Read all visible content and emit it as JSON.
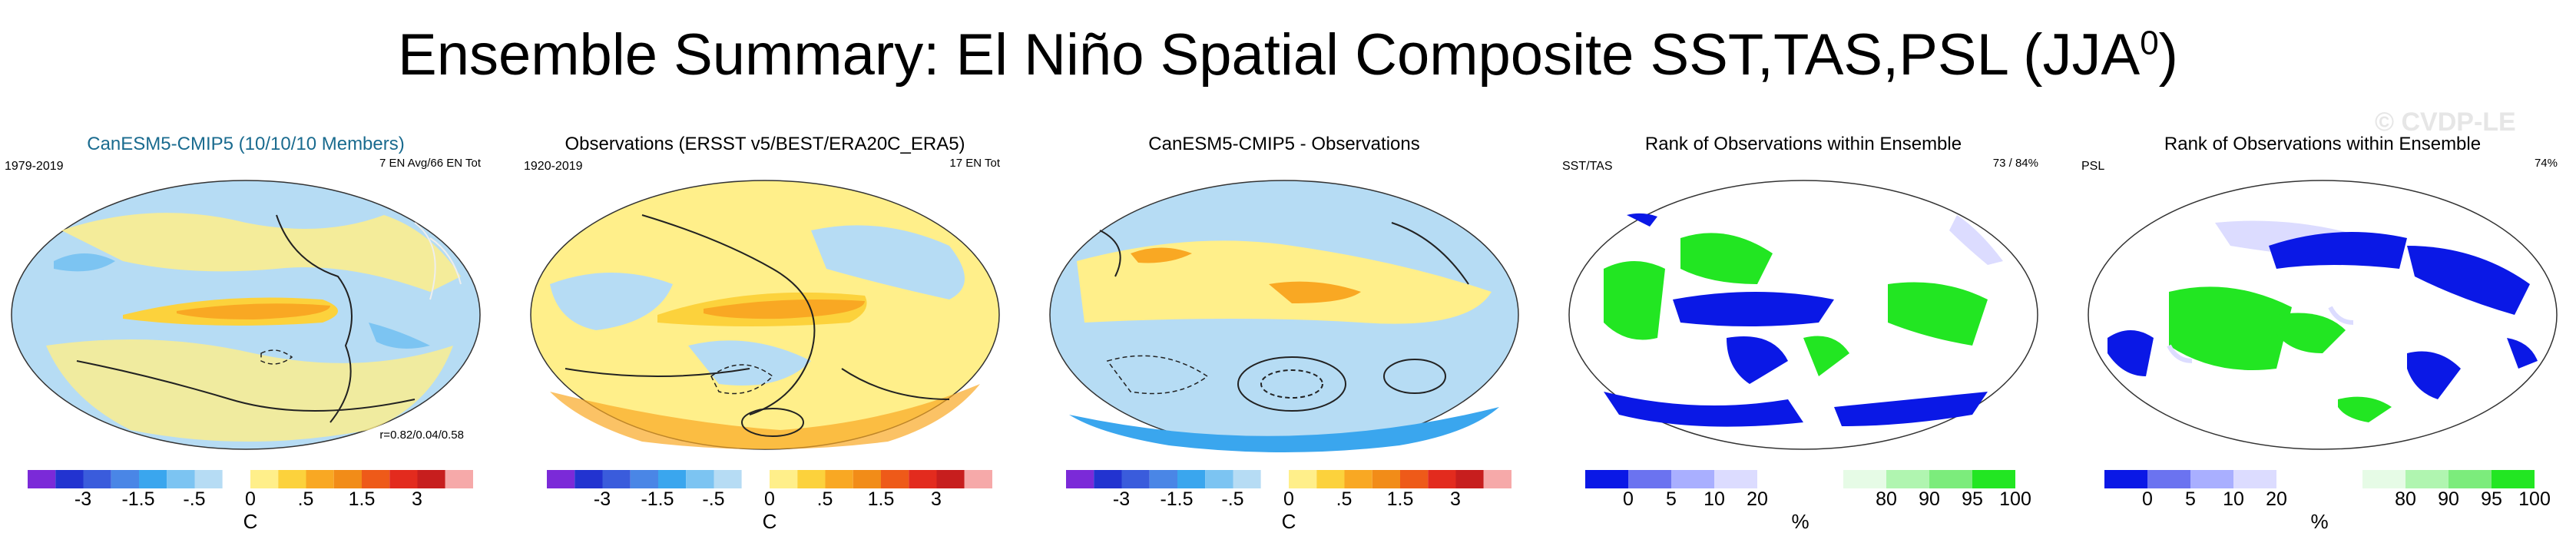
{
  "title": "Ensemble Summary: El Niño Spatial Composite SST,TAS,PSL (JJA",
  "title_sup": "0",
  "title_close": ")",
  "watermark": "© CVDP-LE",
  "panels": [
    {
      "title": "CanESM5-CMIP5 (10/10/10 Members)",
      "left_label": "1979-2019",
      "right_label": "7 EN Avg/66 EN Tot",
      "corner_label": "r=0.82/0.04/0.58",
      "unit": "C",
      "colorbar": "temp"
    },
    {
      "title": "Observations (ERSST v5/BEST/ERA20C_ERA5)",
      "left_label": "1920-2019",
      "right_label": "17 EN Tot",
      "corner_label": "",
      "unit": "C",
      "colorbar": "temp"
    },
    {
      "title": "CanESM5-CMIP5 - Observations",
      "left_label": "",
      "right_label": "",
      "corner_label": "",
      "unit": "C",
      "colorbar": "temp"
    },
    {
      "title": "Rank of Observations within Ensemble",
      "left_label": "SST/TAS",
      "right_label": "73 /  84%",
      "corner_label": "",
      "unit": "%",
      "colorbar": "rank"
    },
    {
      "title": "Rank of Observations within Ensemble",
      "left_label": "PSL",
      "right_label": "74%",
      "corner_label": "",
      "unit": "%",
      "colorbar": "rank"
    }
  ],
  "temp_colorbar": {
    "colors": [
      "#7b2ad8",
      "#2233d0",
      "#3a5cdc",
      "#4a86e6",
      "#3aa6ee",
      "#7cc4f2",
      "#b6dcf4",
      "#ffffff",
      "#ffef8a",
      "#fcd23c",
      "#f9a823",
      "#f28c18",
      "#ee5a19",
      "#e32b1e",
      "#c71e1e",
      "#f6a9a9"
    ],
    "ticks": [
      "-3",
      "-1.5",
      "-.5",
      "0",
      ".5",
      "1.5",
      "3"
    ]
  },
  "rank_colorbar": {
    "colors": [
      "#0a18e6",
      "#6b73f0",
      "#a9afff",
      "#dcdcff",
      "#ffffff",
      "#ffffff",
      "#e6fbe6",
      "#b0f5b0",
      "#7cec7c",
      "#22e622"
    ],
    "ticks": [
      "0",
      "5",
      "10",
      "20",
      "80",
      "90",
      "95",
      "100"
    ]
  }
}
